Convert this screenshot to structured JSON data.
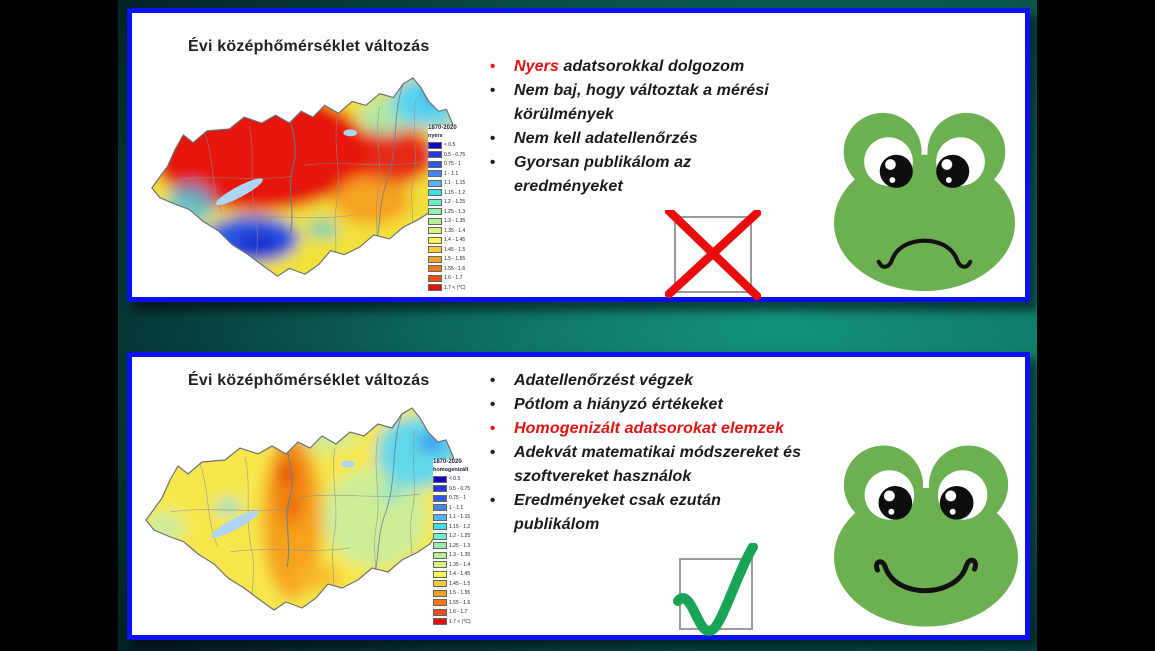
{
  "colors": {
    "panel_border": "#0a11ee",
    "background_teal": "#0e7a68",
    "bullet_text": "#1b1b1b",
    "highlight_red": "#e01212",
    "cross_red": "#ea0c0c",
    "check_green": "#18a457",
    "frog_green": "#6db052",
    "map_hot_red": "#e61710",
    "map_base_yellow": "#f2e13a",
    "map_cool_blue": "#2b59e0"
  },
  "legend_entries": [
    {
      "label": "< 0.5",
      "color": "#1008c0"
    },
    {
      "label": "0.5 - 0.75",
      "color": "#2436dc"
    },
    {
      "label": "0.75 - 1",
      "color": "#3256e8"
    },
    {
      "label": "1 - 1.1",
      "color": "#4a84ee"
    },
    {
      "label": "1.1 - 1.15",
      "color": "#54b4f0"
    },
    {
      "label": "1.15 - 1.2",
      "color": "#3ee0e8"
    },
    {
      "label": "1.2 - 1.25",
      "color": "#6eeccc"
    },
    {
      "label": "1.25 - 1.3",
      "color": "#96eeaa"
    },
    {
      "label": "1.3 - 1.35",
      "color": "#b4ee96"
    },
    {
      "label": "1.35 - 1.4",
      "color": "#d8f47e"
    },
    {
      "label": "1.4 - 1.45",
      "color": "#f6f654"
    },
    {
      "label": "1.45 - 1.5",
      "color": "#f8cc38"
    },
    {
      "label": "1.5 - 1.55",
      "color": "#f5a224"
    },
    {
      "label": "1.55 - 1.6",
      "color": "#ef7a16"
    },
    {
      "label": "1.6 - 1.7",
      "color": "#e74e14"
    },
    {
      "label": "1.7 < (°C)",
      "color": "#df1408"
    }
  ],
  "panels": [
    {
      "name": "raw-data-workflow",
      "map": {
        "title": "Évi középhőmérséklet változás",
        "legend": {
          "period": "1870-2020",
          "dataset": "nyers"
        }
      },
      "bullets": [
        {
          "marker_red": true,
          "lines": [
            [
              {
                "text": "Nyers",
                "red": true
              },
              {
                "text": " adatsorokkal dolgozom"
              }
            ]
          ]
        },
        {
          "marker_red": false,
          "lines": [
            [
              {
                "text": "Nem baj, hogy változtak a mérési"
              }
            ],
            [
              {
                "text": "körülmények"
              }
            ]
          ]
        },
        {
          "marker_red": false,
          "lines": [
            [
              {
                "text": "Nem kell adatellenőrzés"
              }
            ]
          ]
        },
        {
          "marker_red": false,
          "lines": [
            [
              {
                "text": "Gyorsan publikálom az"
              }
            ],
            [
              {
                "text": "eredményeket"
              }
            ]
          ]
        }
      ],
      "verdict": "rejected-cross",
      "mood": "sad-frog"
    },
    {
      "name": "homogenized-data-workflow",
      "map": {
        "title": "Évi középhőmérséklet változás",
        "legend": {
          "period": "1870-2020",
          "dataset": "homogenizált"
        }
      },
      "bullets": [
        {
          "marker_red": false,
          "lines": [
            [
              {
                "text": "Adatellenőrzést végzek"
              }
            ]
          ]
        },
        {
          "marker_red": false,
          "lines": [
            [
              {
                "text": "Pótlom a hiányzó értékeket"
              }
            ]
          ]
        },
        {
          "marker_red": true,
          "lines": [
            [
              {
                "text": "Homogenizált adatsorokat elemzek",
                "red": true
              }
            ]
          ]
        },
        {
          "marker_red": false,
          "lines": [
            [
              {
                "text": "Adekvát matematikai módszereket és"
              }
            ],
            [
              {
                "text": "szoftvereket használok"
              }
            ]
          ]
        },
        {
          "marker_red": false,
          "lines": [
            [
              {
                "text": "Eredményeket csak ezután"
              }
            ],
            [
              {
                "text": "publikálom"
              }
            ]
          ]
        }
      ],
      "verdict": "accepted-check",
      "mood": "happy-frog"
    }
  ]
}
